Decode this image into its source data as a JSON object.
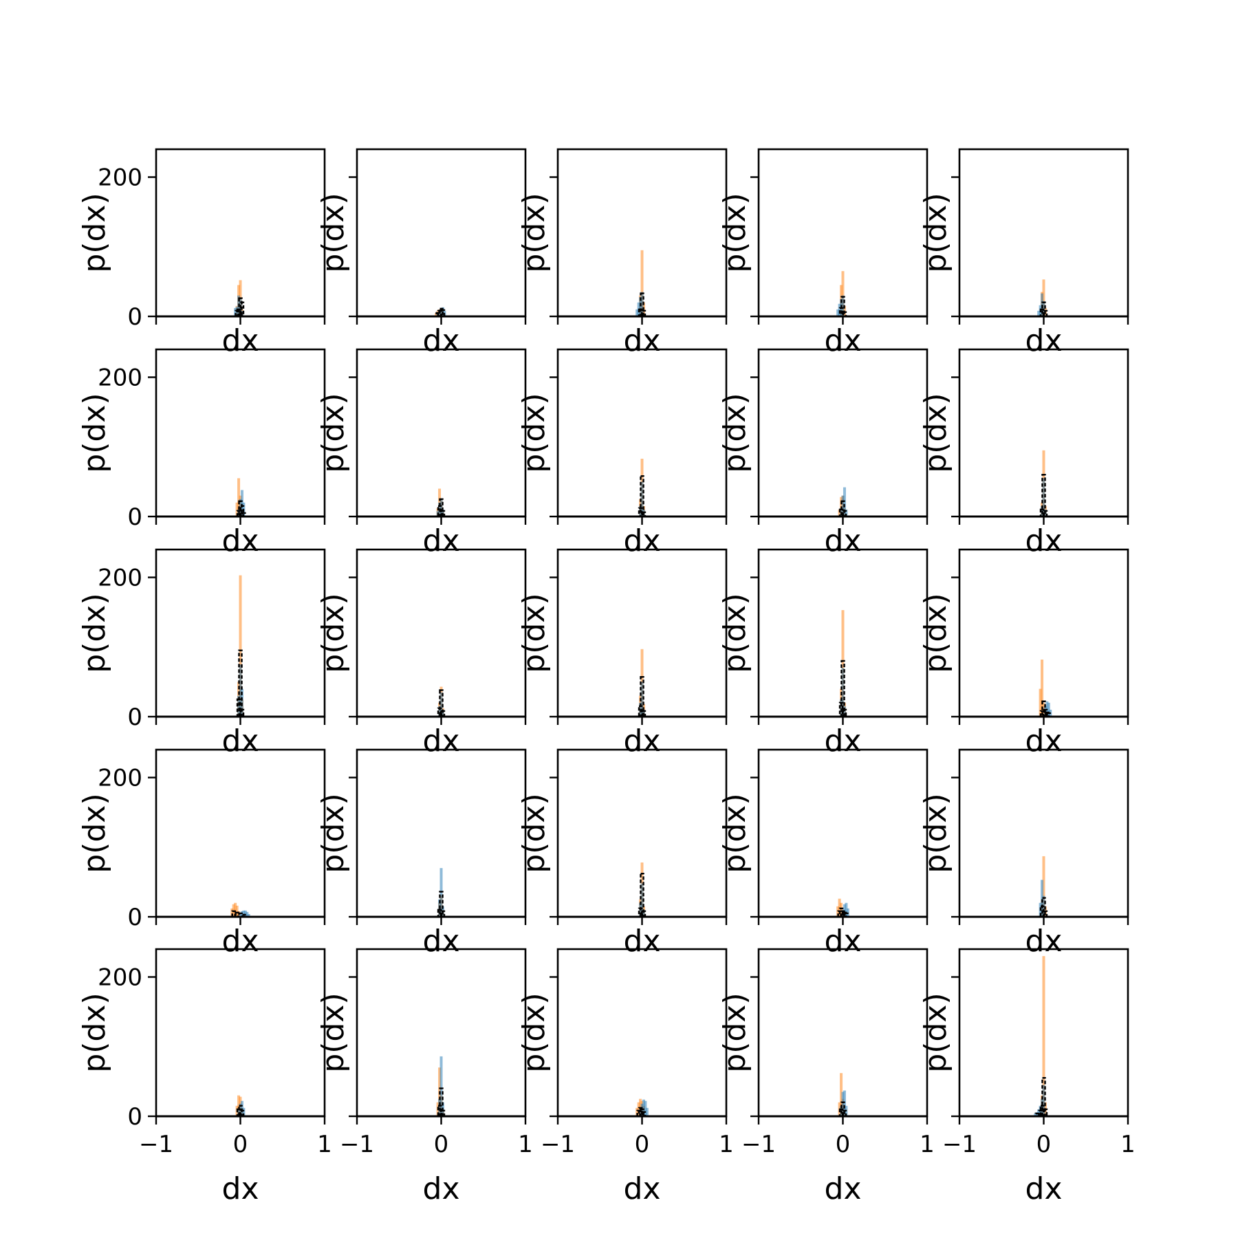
{
  "figure": {
    "rows": 5,
    "cols": 5,
    "xlabel": "dx",
    "ylabel": "p(dx)"
  },
  "colors": {
    "orange": "#ff7f0e",
    "blue": "#1f77b4",
    "black": "#000000",
    "frame": "#000000"
  },
  "chart_data": {
    "type": "bar",
    "layout": "5x5 grid of histograms with shared axes",
    "xlabel": "dx",
    "ylabel": "p(dx)",
    "xlim": [
      -1,
      1
    ],
    "ylim": [
      0,
      240
    ],
    "xticks": [
      -1,
      0,
      1
    ],
    "xtick_labels": [
      "−1",
      "0",
      "1"
    ],
    "yticks": [
      0,
      200
    ],
    "ytick_labels": [
      "0",
      "200"
    ],
    "series_colors": [
      "orange",
      "blue",
      "black"
    ],
    "panels": [
      {
        "row": 0,
        "col": 0,
        "orange": {
          "x": [
            -0.04,
            -0.02,
            0.0,
            0.02
          ],
          "v": [
            15,
            45,
            52,
            10
          ]
        },
        "blue": {
          "x": [
            -0.06,
            -0.04,
            -0.02,
            0.0,
            0.02
          ],
          "v": [
            12,
            14,
            30,
            25,
            8
          ]
        },
        "black": {
          "x": [
            -0.04,
            -0.02,
            0.0,
            0.02
          ],
          "v": [
            8,
            10,
            26,
            20
          ]
        }
      },
      {
        "row": 0,
        "col": 1,
        "orange": {
          "x": [
            -0.06,
            -0.04,
            -0.02,
            0.0,
            0.02
          ],
          "v": [
            5,
            8,
            10,
            12,
            8
          ]
        },
        "blue": {
          "x": [
            -0.04,
            -0.02,
            0.0,
            0.02,
            0.04
          ],
          "v": [
            6,
            9,
            12,
            13,
            8
          ]
        },
        "black": {
          "x": [
            -0.04,
            -0.02,
            0.0,
            0.02
          ],
          "v": [
            5,
            8,
            11,
            9
          ]
        }
      },
      {
        "row": 0,
        "col": 2,
        "orange": {
          "x": [
            -0.02,
            0.0,
            0.02
          ],
          "v": [
            30,
            95,
            20
          ]
        },
        "blue": {
          "x": [
            -0.06,
            -0.04,
            -0.02,
            0.0
          ],
          "v": [
            10,
            20,
            28,
            35
          ]
        },
        "black": {
          "x": [
            -0.02,
            0.0,
            0.02
          ],
          "v": [
            10,
            33,
            8
          ]
        }
      },
      {
        "row": 0,
        "col": 3,
        "orange": {
          "x": [
            -0.02,
            0.0,
            0.02
          ],
          "v": [
            45,
            65,
            15
          ]
        },
        "blue": {
          "x": [
            -0.06,
            -0.04,
            -0.02,
            0.0
          ],
          "v": [
            10,
            18,
            25,
            30
          ]
        },
        "black": {
          "x": [
            -0.02,
            0.0,
            0.02
          ],
          "v": [
            12,
            28,
            6
          ]
        }
      },
      {
        "row": 0,
        "col": 4,
        "orange": {
          "x": [
            -0.02,
            0.0,
            0.02
          ],
          "v": [
            35,
            53,
            12
          ]
        },
        "blue": {
          "x": [
            -0.06,
            -0.04,
            -0.02,
            0.0
          ],
          "v": [
            8,
            16,
            33,
            22
          ]
        },
        "black": {
          "x": [
            -0.02,
            0.0,
            0.02
          ],
          "v": [
            10,
            20,
            8
          ]
        }
      },
      {
        "row": 1,
        "col": 0,
        "orange": {
          "x": [
            -0.04,
            -0.02,
            0.0,
            0.02
          ],
          "v": [
            20,
            55,
            30,
            10
          ]
        },
        "blue": {
          "x": [
            -0.02,
            0.0,
            0.02,
            0.04
          ],
          "v": [
            10,
            25,
            38,
            20
          ]
        },
        "black": {
          "x": [
            -0.02,
            0.0,
            0.02,
            0.04
          ],
          "v": [
            8,
            22,
            15,
            5
          ]
        }
      },
      {
        "row": 1,
        "col": 1,
        "orange": {
          "x": [
            -0.04,
            -0.02,
            0.0,
            0.02
          ],
          "v": [
            12,
            40,
            25,
            8
          ]
        },
        "blue": {
          "x": [
            -0.04,
            -0.02,
            0.0,
            0.02
          ],
          "v": [
            8,
            20,
            25,
            10
          ]
        },
        "black": {
          "x": [
            -0.02,
            0.0,
            0.02
          ],
          "v": [
            15,
            25,
            8
          ]
        }
      },
      {
        "row": 1,
        "col": 2,
        "orange": {
          "x": [
            -0.02,
            0.0,
            0.02
          ],
          "v": [
            25,
            83,
            15
          ]
        },
        "blue": {
          "x": [
            -0.02,
            0.0,
            0.02
          ],
          "v": [
            15,
            50,
            10
          ]
        },
        "black": {
          "x": [
            -0.02,
            0.0,
            0.02
          ],
          "v": [
            12,
            58,
            6
          ]
        }
      },
      {
        "row": 1,
        "col": 3,
        "orange": {
          "x": [
            -0.04,
            -0.02,
            0.0,
            0.02
          ],
          "v": [
            10,
            28,
            30,
            12
          ]
        },
        "blue": {
          "x": [
            -0.02,
            0.0,
            0.02,
            0.04
          ],
          "v": [
            12,
            30,
            42,
            10
          ]
        },
        "black": {
          "x": [
            -0.02,
            0.0,
            0.02
          ],
          "v": [
            10,
            22,
            8
          ]
        }
      },
      {
        "row": 1,
        "col": 4,
        "orange": {
          "x": [
            -0.02,
            0.0,
            0.02
          ],
          "v": [
            20,
            95,
            15
          ]
        },
        "blue": {
          "x": [
            -0.02,
            0.0,
            0.02
          ],
          "v": [
            15,
            55,
            10
          ]
        },
        "black": {
          "x": [
            -0.02,
            0.0,
            0.02
          ],
          "v": [
            10,
            60,
            8
          ]
        }
      },
      {
        "row": 2,
        "col": 0,
        "orange": {
          "x": [
            -0.02,
            0.0,
            0.02
          ],
          "v": [
            50,
            203,
            25
          ]
        },
        "blue": {
          "x": [
            -0.02,
            0.0,
            0.02
          ],
          "v": [
            30,
            75,
            40
          ]
        },
        "black": {
          "x": [
            -0.02,
            0.0,
            0.02
          ],
          "v": [
            25,
            95,
            10
          ]
        }
      },
      {
        "row": 2,
        "col": 1,
        "orange": {
          "x": [
            -0.02,
            0.0,
            0.02
          ],
          "v": [
            20,
            43,
            12
          ]
        },
        "blue": {
          "x": [
            -0.02,
            0.0,
            0.02
          ],
          "v": [
            15,
            35,
            10
          ]
        },
        "black": {
          "x": [
            -0.02,
            0.0,
            0.02
          ],
          "v": [
            12,
            38,
            8
          ]
        }
      },
      {
        "row": 2,
        "col": 2,
        "orange": {
          "x": [
            -0.02,
            0.0,
            0.02
          ],
          "v": [
            30,
            97,
            18
          ]
        },
        "blue": {
          "x": [
            -0.02,
            0.0,
            0.02
          ],
          "v": [
            20,
            50,
            10
          ]
        },
        "black": {
          "x": [
            -0.02,
            0.0,
            0.02
          ],
          "v": [
            15,
            57,
            8
          ]
        }
      },
      {
        "row": 2,
        "col": 3,
        "orange": {
          "x": [
            -0.02,
            0.0,
            0.02
          ],
          "v": [
            40,
            153,
            20
          ]
        },
        "blue": {
          "x": [
            -0.02,
            0.0,
            0.02
          ],
          "v": [
            25,
            70,
            15
          ]
        },
        "black": {
          "x": [
            -0.02,
            0.0,
            0.02
          ],
          "v": [
            20,
            80,
            10
          ]
        }
      },
      {
        "row": 2,
        "col": 4,
        "orange": {
          "x": [
            -0.04,
            -0.02,
            0.0,
            0.02
          ],
          "v": [
            40,
            82,
            20,
            8
          ]
        },
        "blue": {
          "x": [
            0.02,
            0.04,
            0.06,
            0.08
          ],
          "v": [
            15,
            22,
            20,
            10
          ]
        },
        "black": {
          "x": [
            -0.02,
            0.0,
            0.02,
            0.04,
            0.06
          ],
          "v": [
            8,
            22,
            10,
            6,
            5
          ]
        }
      },
      {
        "row": 3,
        "col": 0,
        "orange": {
          "x": [
            -0.1,
            -0.08,
            -0.06,
            -0.04,
            -0.02
          ],
          "v": [
            12,
            18,
            20,
            16,
            8
          ]
        },
        "blue": {
          "x": [
            0.0,
            0.02,
            0.04,
            0.06,
            0.08,
            0.1
          ],
          "v": [
            5,
            8,
            9,
            9,
            7,
            4
          ]
        },
        "black": {
          "x": [
            -0.08,
            -0.04,
            0.0,
            0.04
          ],
          "v": [
            8,
            6,
            5,
            3
          ]
        }
      },
      {
        "row": 3,
        "col": 1,
        "orange": {
          "x": [
            -0.02,
            0.0,
            0.02
          ],
          "v": [
            20,
            30,
            10
          ]
        },
        "blue": {
          "x": [
            -0.02,
            0.0,
            0.02
          ],
          "v": [
            25,
            70,
            15
          ]
        },
        "black": {
          "x": [
            -0.02,
            0.0,
            0.02
          ],
          "v": [
            10,
            36,
            8
          ]
        }
      },
      {
        "row": 3,
        "col": 2,
        "orange": {
          "x": [
            -0.02,
            0.0,
            0.02
          ],
          "v": [
            25,
            78,
            15
          ]
        },
        "blue": {
          "x": [
            -0.02,
            0.0,
            0.02
          ],
          "v": [
            20,
            48,
            10
          ]
        },
        "black": {
          "x": [
            -0.02,
            0.0,
            0.02
          ],
          "v": [
            12,
            62,
            8
          ]
        }
      },
      {
        "row": 3,
        "col": 3,
        "orange": {
          "x": [
            -0.06,
            -0.04,
            -0.02,
            0.0
          ],
          "v": [
            15,
            26,
            20,
            10
          ]
        },
        "blue": {
          "x": [
            0.0,
            0.02,
            0.04,
            0.06
          ],
          "v": [
            10,
            18,
            20,
            12
          ]
        },
        "black": {
          "x": [
            -0.04,
            -0.02,
            0.0,
            0.02,
            0.04
          ],
          "v": [
            8,
            12,
            8,
            6,
            5
          ]
        }
      },
      {
        "row": 3,
        "col": 4,
        "orange": {
          "x": [
            -0.02,
            0.0,
            0.02
          ],
          "v": [
            25,
            87,
            15
          ]
        },
        "blue": {
          "x": [
            -0.04,
            -0.02,
            0.0
          ],
          "v": [
            20,
            53,
            30
          ]
        },
        "black": {
          "x": [
            -0.02,
            0.0,
            0.02
          ],
          "v": [
            15,
            27,
            8
          ]
        }
      },
      {
        "row": 4,
        "col": 0,
        "orange": {
          "x": [
            -0.04,
            -0.02,
            0.0,
            0.02
          ],
          "v": [
            15,
            30,
            28,
            12
          ]
        },
        "blue": {
          "x": [
            -0.02,
            0.0,
            0.02,
            0.04
          ],
          "v": [
            10,
            18,
            22,
            12
          ]
        },
        "black": {
          "x": [
            -0.02,
            0.0,
            0.02
          ],
          "v": [
            10,
            15,
            8
          ]
        }
      },
      {
        "row": 4,
        "col": 1,
        "orange": {
          "x": [
            -0.04,
            -0.02,
            0.0,
            0.02
          ],
          "v": [
            20,
            70,
            30,
            10
          ]
        },
        "blue": {
          "x": [
            -0.02,
            0.0,
            0.02
          ],
          "v": [
            25,
            86,
            20
          ]
        },
        "black": {
          "x": [
            -0.02,
            0.0,
            0.02
          ],
          "v": [
            15,
            40,
            8
          ]
        }
      },
      {
        "row": 4,
        "col": 2,
        "orange": {
          "x": [
            -0.06,
            -0.04,
            -0.02,
            0.0,
            0.02
          ],
          "v": [
            12,
            20,
            25,
            22,
            15
          ]
        },
        "blue": {
          "x": [
            -0.02,
            0.0,
            0.02,
            0.04,
            0.06
          ],
          "v": [
            10,
            18,
            24,
            22,
            12
          ]
        },
        "black": {
          "x": [
            -0.04,
            -0.02,
            0.0,
            0.02
          ],
          "v": [
            8,
            12,
            10,
            6
          ]
        }
      },
      {
        "row": 4,
        "col": 3,
        "orange": {
          "x": [
            -0.04,
            -0.02,
            0.0,
            0.02
          ],
          "v": [
            20,
            62,
            25,
            10
          ]
        },
        "blue": {
          "x": [
            -0.02,
            0.0,
            0.02,
            0.04
          ],
          "v": [
            15,
            35,
            37,
            15
          ]
        },
        "black": {
          "x": [
            -0.02,
            0.0,
            0.02
          ],
          "v": [
            10,
            20,
            8
          ]
        }
      },
      {
        "row": 4,
        "col": 4,
        "orange": {
          "x": [
            -0.02,
            0.0,
            0.02
          ],
          "v": [
            30,
            230,
            20
          ]
        },
        "blue": {
          "x": [
            -0.1,
            -0.08,
            -0.06,
            -0.04,
            -0.02,
            0.0
          ],
          "v": [
            4,
            6,
            10,
            15,
            25,
            45
          ]
        },
        "black": {
          "x": [
            -0.08,
            -0.04,
            -0.02,
            0.0,
            0.02
          ],
          "v": [
            4,
            8,
            15,
            55,
            10
          ]
        }
      }
    ]
  }
}
